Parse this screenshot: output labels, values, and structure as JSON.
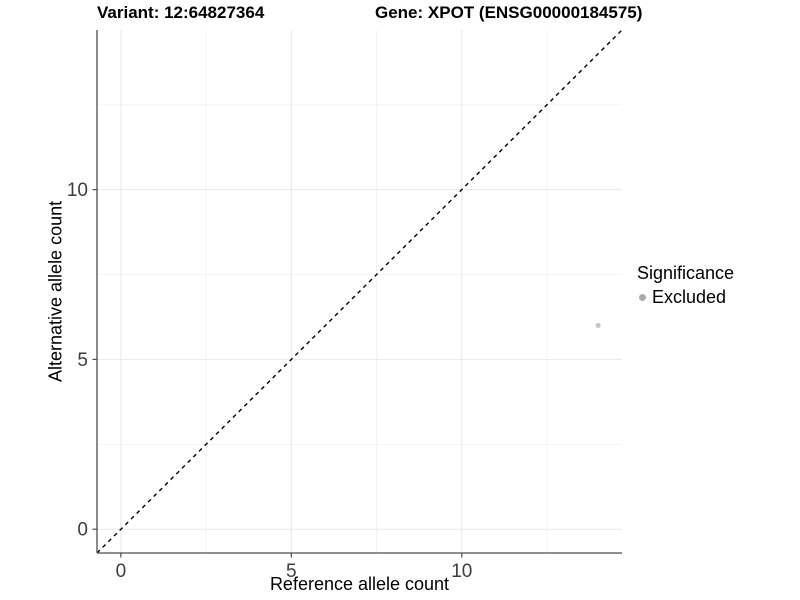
{
  "figure": {
    "title_left": "Variant: 12:64827364",
    "title_right": "Gene: XPOT (ENSG00000184575)"
  },
  "chart_data": {
    "type": "scatter",
    "xlabel": "Reference allele count",
    "ylabel": "Alternative allele count",
    "xlim": [
      -0.7,
      14.7
    ],
    "ylim": [
      -0.7,
      14.7
    ],
    "x_ticks": [
      0,
      5,
      10
    ],
    "y_ticks": [
      0,
      5,
      10
    ],
    "x_minor_ticks": [
      2.5,
      7.5,
      12.5
    ],
    "y_minor_ticks": [
      2.5,
      7.5,
      12.5
    ],
    "grid": "major and minor, very light gray on white",
    "identity_line": {
      "slope": 1,
      "intercept": 0,
      "style": "dashed",
      "color": "#000000"
    },
    "series": [
      {
        "name": "Excluded",
        "color": "#c4c4c4",
        "points": [
          {
            "x": 14,
            "y": 6
          }
        ]
      }
    ],
    "legend": {
      "title": "Significance",
      "position": "right",
      "items": [
        {
          "label": "Excluded",
          "color": "#ababab"
        }
      ]
    }
  },
  "colors": {
    "background": "#ffffff",
    "grid_major": "#e8e8e8",
    "grid_minor": "#f3f3f3",
    "axis": "#4d4d4d",
    "tick_label": "#3d3d3d"
  }
}
